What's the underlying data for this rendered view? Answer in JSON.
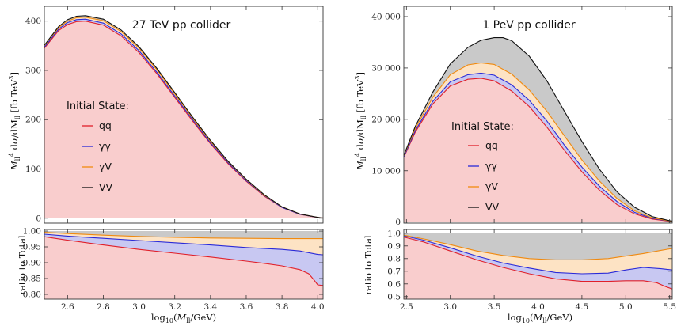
{
  "colors": {
    "qq": "#e0202a",
    "gg": "#2a2ad8",
    "gV": "#f08a10",
    "VV": "#111111",
    "fill_qq": "#f9cdcd",
    "fill_gg": "#c8c8f2",
    "fill_gV": "#fde3c4",
    "fill_VV": "#c9c9c9"
  },
  "chart_data": [
    {
      "type": "area",
      "title": "27 TeV pp collider",
      "xlabel": "",
      "ylabel": "M_ll^4 dσ/dM_ll [fb TeV^3]",
      "xlim": [
        2.47,
        4.03
      ],
      "ylim": [
        -10,
        430
      ],
      "yticks": [
        "0",
        "100",
        "200",
        "300",
        "400"
      ],
      "legend_title": "Initial State:",
      "series": [
        {
          "name": "qq",
          "x": [
            2.47,
            2.55,
            2.6,
            2.65,
            2.7,
            2.8,
            2.9,
            3.0,
            3.1,
            3.2,
            3.3,
            3.4,
            3.5,
            3.6,
            3.7,
            3.8,
            3.9,
            4.0,
            4.03
          ],
          "y": [
            345,
            381,
            393,
            399,
            400,
            392,
            370,
            336,
            293,
            245,
            197,
            151,
            110,
            75,
            45,
            22,
            8,
            1.5,
            0.5
          ]
        },
        {
          "name": "γγ",
          "x": [
            2.47,
            2.55,
            2.6,
            2.65,
            2.7,
            2.8,
            2.9,
            3.0,
            3.1,
            3.2,
            3.3,
            3.4,
            3.5,
            3.6,
            3.7,
            3.8,
            3.9,
            4.0,
            4.03
          ],
          "y": [
            347,
            384,
            397,
            403,
            404,
            396,
            374,
            340,
            296,
            248,
            200,
            153,
            112,
            76,
            46,
            22,
            8,
            1.6,
            0.5
          ]
        },
        {
          "name": "γV",
          "x": [
            2.47,
            2.55,
            2.6,
            2.65,
            2.7,
            2.8,
            2.9,
            3.0,
            3.1,
            3.2,
            3.3,
            3.4,
            3.5,
            3.6,
            3.7,
            3.8,
            3.9,
            4.0,
            4.03
          ],
          "y": [
            350,
            387,
            400,
            407,
            408,
            401,
            379,
            345,
            301,
            252,
            203,
            156,
            114,
            78,
            47,
            23,
            8.5,
            1.7,
            0.5
          ]
        },
        {
          "name": "VV",
          "x": [
            2.47,
            2.55,
            2.6,
            2.65,
            2.7,
            2.8,
            2.9,
            3.0,
            3.1,
            3.2,
            3.3,
            3.4,
            3.5,
            3.6,
            3.7,
            3.8,
            3.9,
            4.0,
            4.03
          ],
          "y": [
            351,
            389,
            403,
            410,
            411,
            404,
            382,
            348,
            304,
            255,
            205,
            158,
            115,
            79,
            48,
            23,
            8.7,
            1.7,
            0.5
          ]
        }
      ]
    },
    {
      "type": "area",
      "title": "",
      "xlabel": "log10(M_ll/GeV)",
      "ylabel": "ratio to Total",
      "xlim": [
        2.47,
        4.03
      ],
      "ylim": [
        0.785,
        1.005
      ],
      "xticks": [
        "2.6",
        "2.8",
        "3.0",
        "3.2",
        "3.4",
        "3.6",
        "3.8",
        "4.0"
      ],
      "yticks": [
        "0.80",
        "0.85",
        "0.90",
        "0.95",
        "1.00"
      ],
      "series": [
        {
          "name": "qq",
          "x": [
            2.47,
            2.6,
            2.8,
            3.0,
            3.2,
            3.4,
            3.6,
            3.7,
            3.8,
            3.9,
            3.95,
            3.98,
            4.0,
            4.03
          ],
          "y": [
            0.982,
            0.971,
            0.956,
            0.942,
            0.93,
            0.918,
            0.905,
            0.898,
            0.89,
            0.878,
            0.865,
            0.845,
            0.83,
            0.828
          ]
        },
        {
          "name": "γγ",
          "x": [
            2.47,
            2.6,
            2.8,
            3.0,
            3.2,
            3.4,
            3.6,
            3.8,
            3.9,
            4.0,
            4.03
          ],
          "y": [
            0.99,
            0.984,
            0.977,
            0.97,
            0.963,
            0.956,
            0.948,
            0.942,
            0.937,
            0.926,
            0.925
          ]
        },
        {
          "name": "γV",
          "x": [
            2.47,
            2.6,
            2.8,
            3.0,
            3.2,
            3.4,
            3.6,
            3.8,
            4.0,
            4.03
          ],
          "y": [
            0.996,
            0.992,
            0.987,
            0.983,
            0.98,
            0.978,
            0.977,
            0.976,
            0.976,
            0.976
          ]
        }
      ]
    },
    {
      "type": "area",
      "title": "1 PeV pp collider",
      "xlabel": "",
      "ylabel": "M_ll^4 dσ/dM_ll [fb TeV^3]",
      "xlim": [
        2.47,
        5.53
      ],
      "ylim": [
        -200,
        42000
      ],
      "yticks": [
        "0",
        "10 000",
        "20 000",
        "30 000",
        "40 000"
      ],
      "legend_title": "Initial State:",
      "series": [
        {
          "name": "qq",
          "x": [
            2.47,
            2.6,
            2.8,
            3.0,
            3.2,
            3.35,
            3.5,
            3.7,
            3.9,
            4.1,
            4.3,
            4.5,
            4.7,
            4.9,
            5.1,
            5.3,
            5.5,
            5.53
          ],
          "y": [
            12600,
            17500,
            23000,
            26500,
            27800,
            28000,
            27500,
            25500,
            22500,
            18500,
            14000,
            9800,
            6200,
            3400,
            1600,
            600,
            150,
            120
          ]
        },
        {
          "name": "γγ",
          "x": [
            2.47,
            2.6,
            2.8,
            3.0,
            3.2,
            3.35,
            3.5,
            3.7,
            3.9,
            4.1,
            4.3,
            4.5,
            4.7,
            4.9,
            5.1,
            5.3,
            5.5,
            5.53
          ],
          "y": [
            12700,
            17800,
            23500,
            27300,
            28700,
            29000,
            28600,
            26700,
            23700,
            19700,
            15000,
            10700,
            7000,
            4000,
            1900,
            720,
            180,
            140
          ]
        },
        {
          "name": "γV",
          "x": [
            2.47,
            2.6,
            2.8,
            3.0,
            3.2,
            3.35,
            3.5,
            3.7,
            3.9,
            4.1,
            4.3,
            4.5,
            4.7,
            4.9,
            5.1,
            5.3,
            5.5,
            5.53
          ],
          "y": [
            12900,
            18200,
            24300,
            28700,
            30600,
            31000,
            30700,
            28800,
            25700,
            21600,
            16800,
            12100,
            8000,
            4600,
            2200,
            850,
            220,
            170
          ]
        },
        {
          "name": "VV",
          "x": [
            2.47,
            2.6,
            2.8,
            3.0,
            3.2,
            3.35,
            3.5,
            3.6,
            3.7,
            3.9,
            4.1,
            4.3,
            4.5,
            4.7,
            4.9,
            5.1,
            5.3,
            5.5,
            5.53
          ],
          "y": [
            13000,
            18600,
            25300,
            30800,
            34000,
            35400,
            35900,
            35900,
            35300,
            32300,
            27500,
            21600,
            15700,
            10300,
            5900,
            2900,
            1100,
            280,
            210
          ]
        }
      ]
    },
    {
      "type": "area",
      "title": "",
      "xlabel": "log10(M_ll/GeV)",
      "ylabel": "ratio to Total",
      "xlim": [
        2.47,
        5.53
      ],
      "ylim": [
        0.48,
        1.03
      ],
      "xticks": [
        "2.5",
        "3.0",
        "3.5",
        "4.0",
        "4.5",
        "5.0",
        "5.5"
      ],
      "yticks": [
        "0.5",
        "0.6",
        "0.7",
        "0.8",
        "0.9",
        "1.0"
      ],
      "series": [
        {
          "name": "qq",
          "x": [
            2.47,
            2.7,
            3.0,
            3.3,
            3.6,
            3.9,
            4.2,
            4.5,
            4.8,
            5.0,
            5.2,
            5.35,
            5.45,
            5.53
          ],
          "y": [
            0.97,
            0.93,
            0.86,
            0.79,
            0.73,
            0.68,
            0.64,
            0.62,
            0.62,
            0.625,
            0.625,
            0.61,
            0.58,
            0.56
          ]
        },
        {
          "name": "γγ",
          "x": [
            2.47,
            2.7,
            3.0,
            3.3,
            3.6,
            3.9,
            4.2,
            4.5,
            4.8,
            5.0,
            5.2,
            5.4,
            5.53
          ],
          "y": [
            0.98,
            0.945,
            0.885,
            0.82,
            0.765,
            0.725,
            0.69,
            0.68,
            0.685,
            0.71,
            0.73,
            0.72,
            0.71
          ]
        },
        {
          "name": "γV",
          "x": [
            2.47,
            2.7,
            3.0,
            3.3,
            3.6,
            3.9,
            4.2,
            4.5,
            4.8,
            5.0,
            5.2,
            5.4,
            5.53
          ],
          "y": [
            0.985,
            0.955,
            0.91,
            0.86,
            0.825,
            0.8,
            0.79,
            0.79,
            0.8,
            0.82,
            0.84,
            0.865,
            0.88
          ]
        }
      ]
    }
  ]
}
